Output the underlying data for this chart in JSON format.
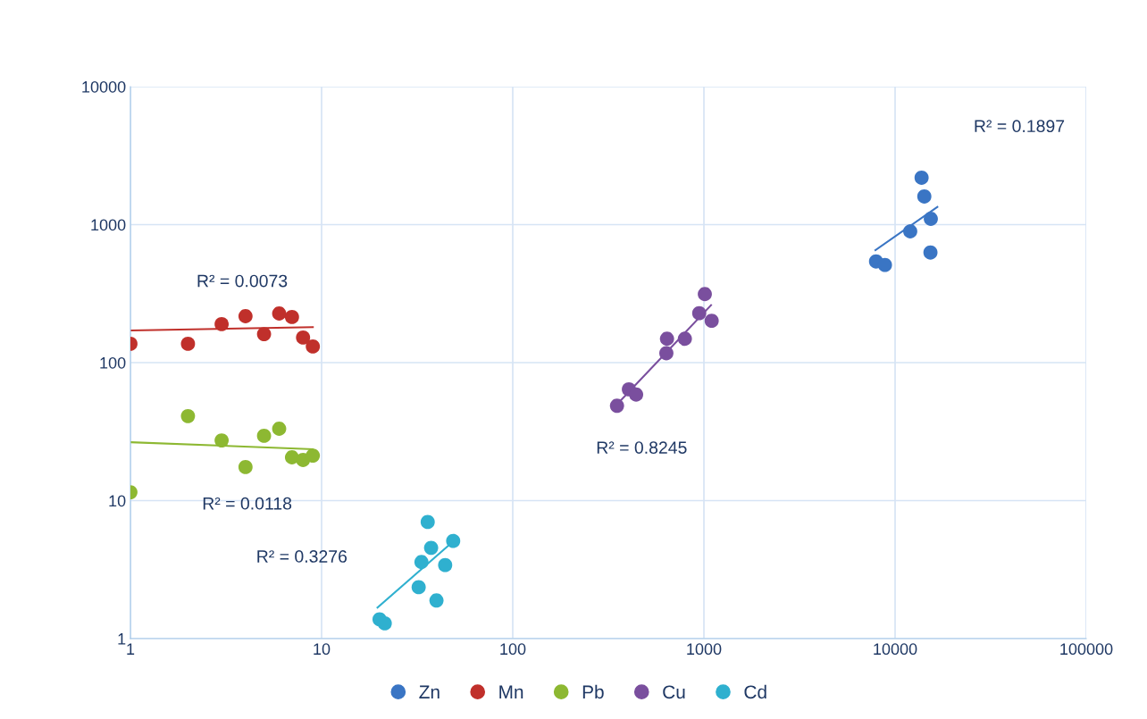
{
  "chart_data": {
    "type": "scatter",
    "log": "xy",
    "grid": true,
    "legend": "bottom",
    "marker": "circle",
    "xlim": [
      1,
      100000
    ],
    "xticks": [
      1,
      10,
      100,
      1000,
      10000,
      100000
    ],
    "ylim": [
      1,
      10000
    ],
    "yticks": [
      1,
      10,
      100,
      1000,
      10000
    ],
    "series": [
      {
        "name": "Zn",
        "color": "#3a75c4",
        "x": [
          13760,
          14220,
          15380,
          12000,
          15310,
          7950,
          8850
        ],
        "values": [
          2188,
          1600,
          1102,
          894,
          628,
          541,
          510
        ]
      },
      {
        "name": "Mn",
        "color": "#c0302b",
        "x": [
          1,
          2,
          3,
          4,
          5,
          6,
          7,
          8,
          9
        ],
        "values": [
          137,
          137,
          190,
          217,
          161,
          227,
          214,
          152,
          131
        ]
      },
      {
        "name": "Pb",
        "color": "#8db832",
        "x": [
          1,
          2,
          3,
          4,
          5,
          6,
          7,
          8,
          9
        ],
        "values": [
          11.5,
          41,
          27.3,
          17.5,
          29.5,
          33.2,
          20.6,
          19.7,
          21.2
        ]
      },
      {
        "name": "Cu",
        "color": "#7a4f9e",
        "x": [
          1011,
          945,
          1098,
          641,
          795,
          636,
          405,
          442,
          351
        ],
        "values": [
          314,
          228,
          201,
          149,
          149,
          117,
          64,
          58.7,
          48.7
        ]
      },
      {
        "name": "Cd",
        "color": "#2fb0cf",
        "x": [
          35.9,
          37.4,
          33.3,
          48.8,
          44.3,
          32.2,
          39.9,
          20.1,
          21.4
        ],
        "values": [
          7.0,
          4.55,
          3.59,
          5.1,
          3.41,
          2.36,
          1.89,
          1.38,
          1.29
        ]
      },
      {
        "type": "line",
        "marker": "none",
        "color": "#3a75c4",
        "x": [
          7890,
          16640
        ],
        "values": [
          654,
          1343
        ]
      },
      {
        "type": "line",
        "marker": "none",
        "color": "#c0302b",
        "x": [
          1,
          9
        ],
        "values": [
          171,
          181
        ]
      },
      {
        "type": "line",
        "marker": "none",
        "color": "#8db832",
        "x": [
          1,
          9
        ],
        "values": [
          26.5,
          23.6
        ]
      },
      {
        "type": "line",
        "marker": "none",
        "color": "#7a4f9e",
        "x": [
          361,
          1090
        ],
        "values": [
          51.9,
          261
        ]
      },
      {
        "type": "line",
        "marker": "none",
        "color": "#2fb0cf",
        "x": [
          19.6,
          48.5
        ],
        "values": [
          1.68,
          5.02
        ]
      }
    ],
    "annotations": [
      "R² = 0.1897",
      "R² = 0.0073",
      "R² = 0.0118",
      "R² = 0.8245",
      "R² = 0.3276"
    ]
  }
}
